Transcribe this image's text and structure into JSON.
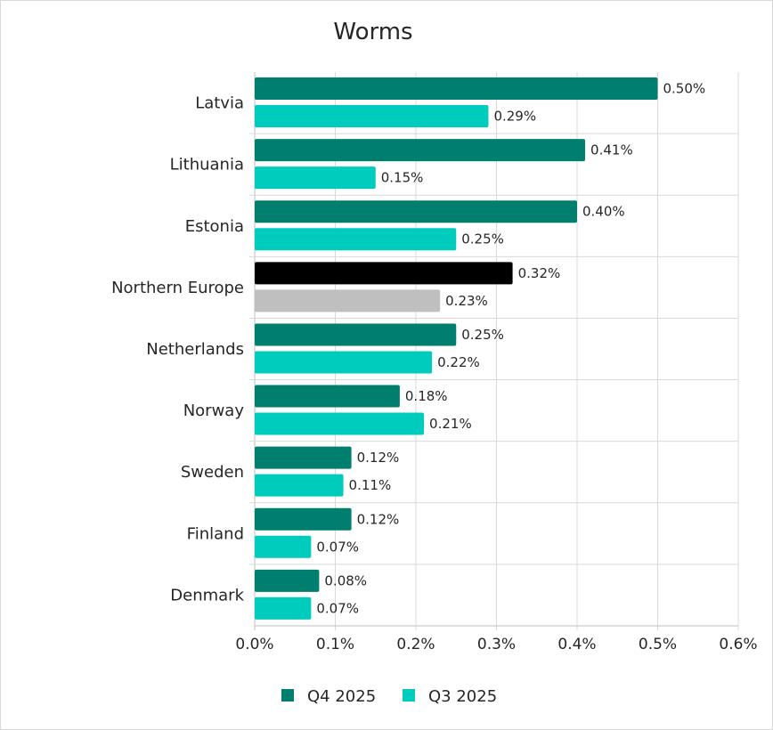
{
  "chart_data": {
    "type": "bar",
    "orientation": "horizontal",
    "title": "Worms",
    "categories": [
      "Latvia",
      "Lithuania",
      "Estonia",
      "Northern Europe",
      "Netherlands",
      "Norway",
      "Sweden",
      "Finland",
      "Denmark"
    ],
    "series": [
      {
        "name": "Q4 2025",
        "color": "#007f6e",
        "values": [
          0.5,
          0.41,
          0.4,
          0.32,
          0.25,
          0.18,
          0.12,
          0.12,
          0.08
        ],
        "labels": [
          "0.50%",
          "0.41%",
          "0.40%",
          "0.32%",
          "0.25%",
          "0.18%",
          "0.12%",
          "0.12%",
          "0.08%"
        ]
      },
      {
        "name": "Q3 2025",
        "color": "#00ccbe",
        "values": [
          0.29,
          0.15,
          0.25,
          0.23,
          0.22,
          0.21,
          0.11,
          0.07,
          0.07
        ],
        "labels": [
          "0.29%",
          "0.15%",
          "0.25%",
          "0.23%",
          "0.22%",
          "0.21%",
          "0.11%",
          "0.07%",
          "0.07%"
        ]
      }
    ],
    "highlight": {
      "category": "Northern Europe",
      "colors": [
        "#000000",
        "#bfbfbf"
      ]
    },
    "xlim": [
      0,
      0.6
    ],
    "xticks": [
      "0.0%",
      "0.1%",
      "0.2%",
      "0.3%",
      "0.4%",
      "0.5%",
      "0.6%"
    ],
    "grid": "vertical and horizontal",
    "legend": "bottom"
  }
}
